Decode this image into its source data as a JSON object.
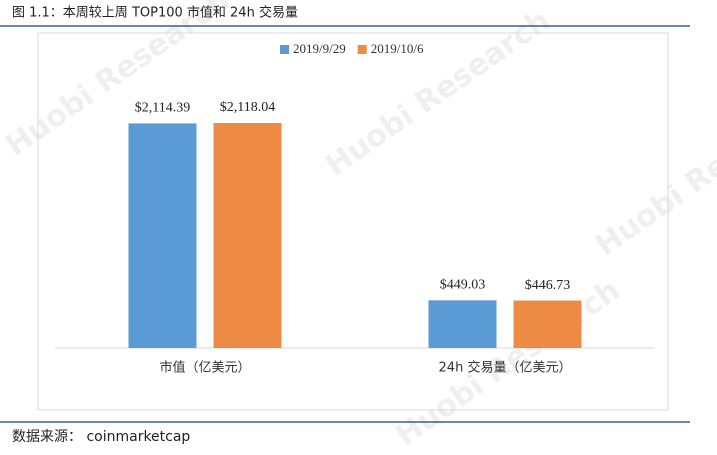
{
  "chart_data": {
    "type": "bar",
    "title": "图 1.1：本周较上周 TOP100 市值和 24h 交易量",
    "categories": [
      "市值（亿美元）",
      "24h 交易量（亿美元）"
    ],
    "series": [
      {
        "name": "2019/9/29",
        "color": "#5b9bd5",
        "values": [
          2114.39,
          449.03
        ],
        "value_labels": [
          "$2,114.39",
          "$449.03"
        ]
      },
      {
        "name": "2019/10/6",
        "color": "#ed8b45",
        "values": [
          2118.04,
          446.73
        ],
        "value_labels": [
          "$2,118.04",
          "$446.73"
        ]
      }
    ],
    "legend": "top"
  },
  "watermark": "Huobi Research",
  "source": "数据来源：  coinmarketcap"
}
